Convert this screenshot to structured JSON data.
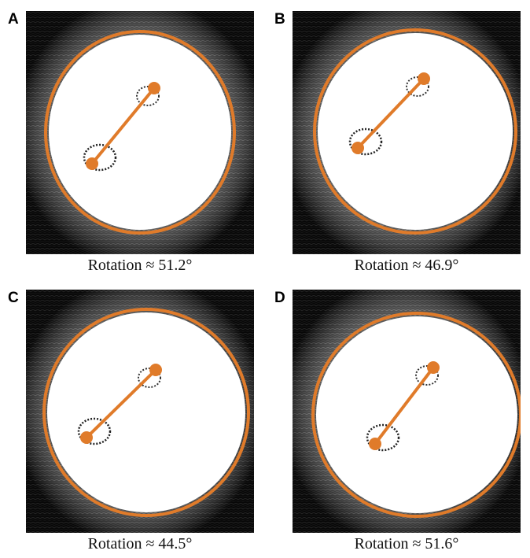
{
  "panels": [
    {
      "label": "A",
      "caption": "Rotation ≈ 51.2°"
    },
    {
      "label": "B",
      "caption": "Rotation ≈ 46.9°"
    },
    {
      "label": "C",
      "caption": "Rotation ≈ 44.5°"
    },
    {
      "label": "D",
      "caption": "Rotation ≈ 51.6°"
    }
  ]
}
